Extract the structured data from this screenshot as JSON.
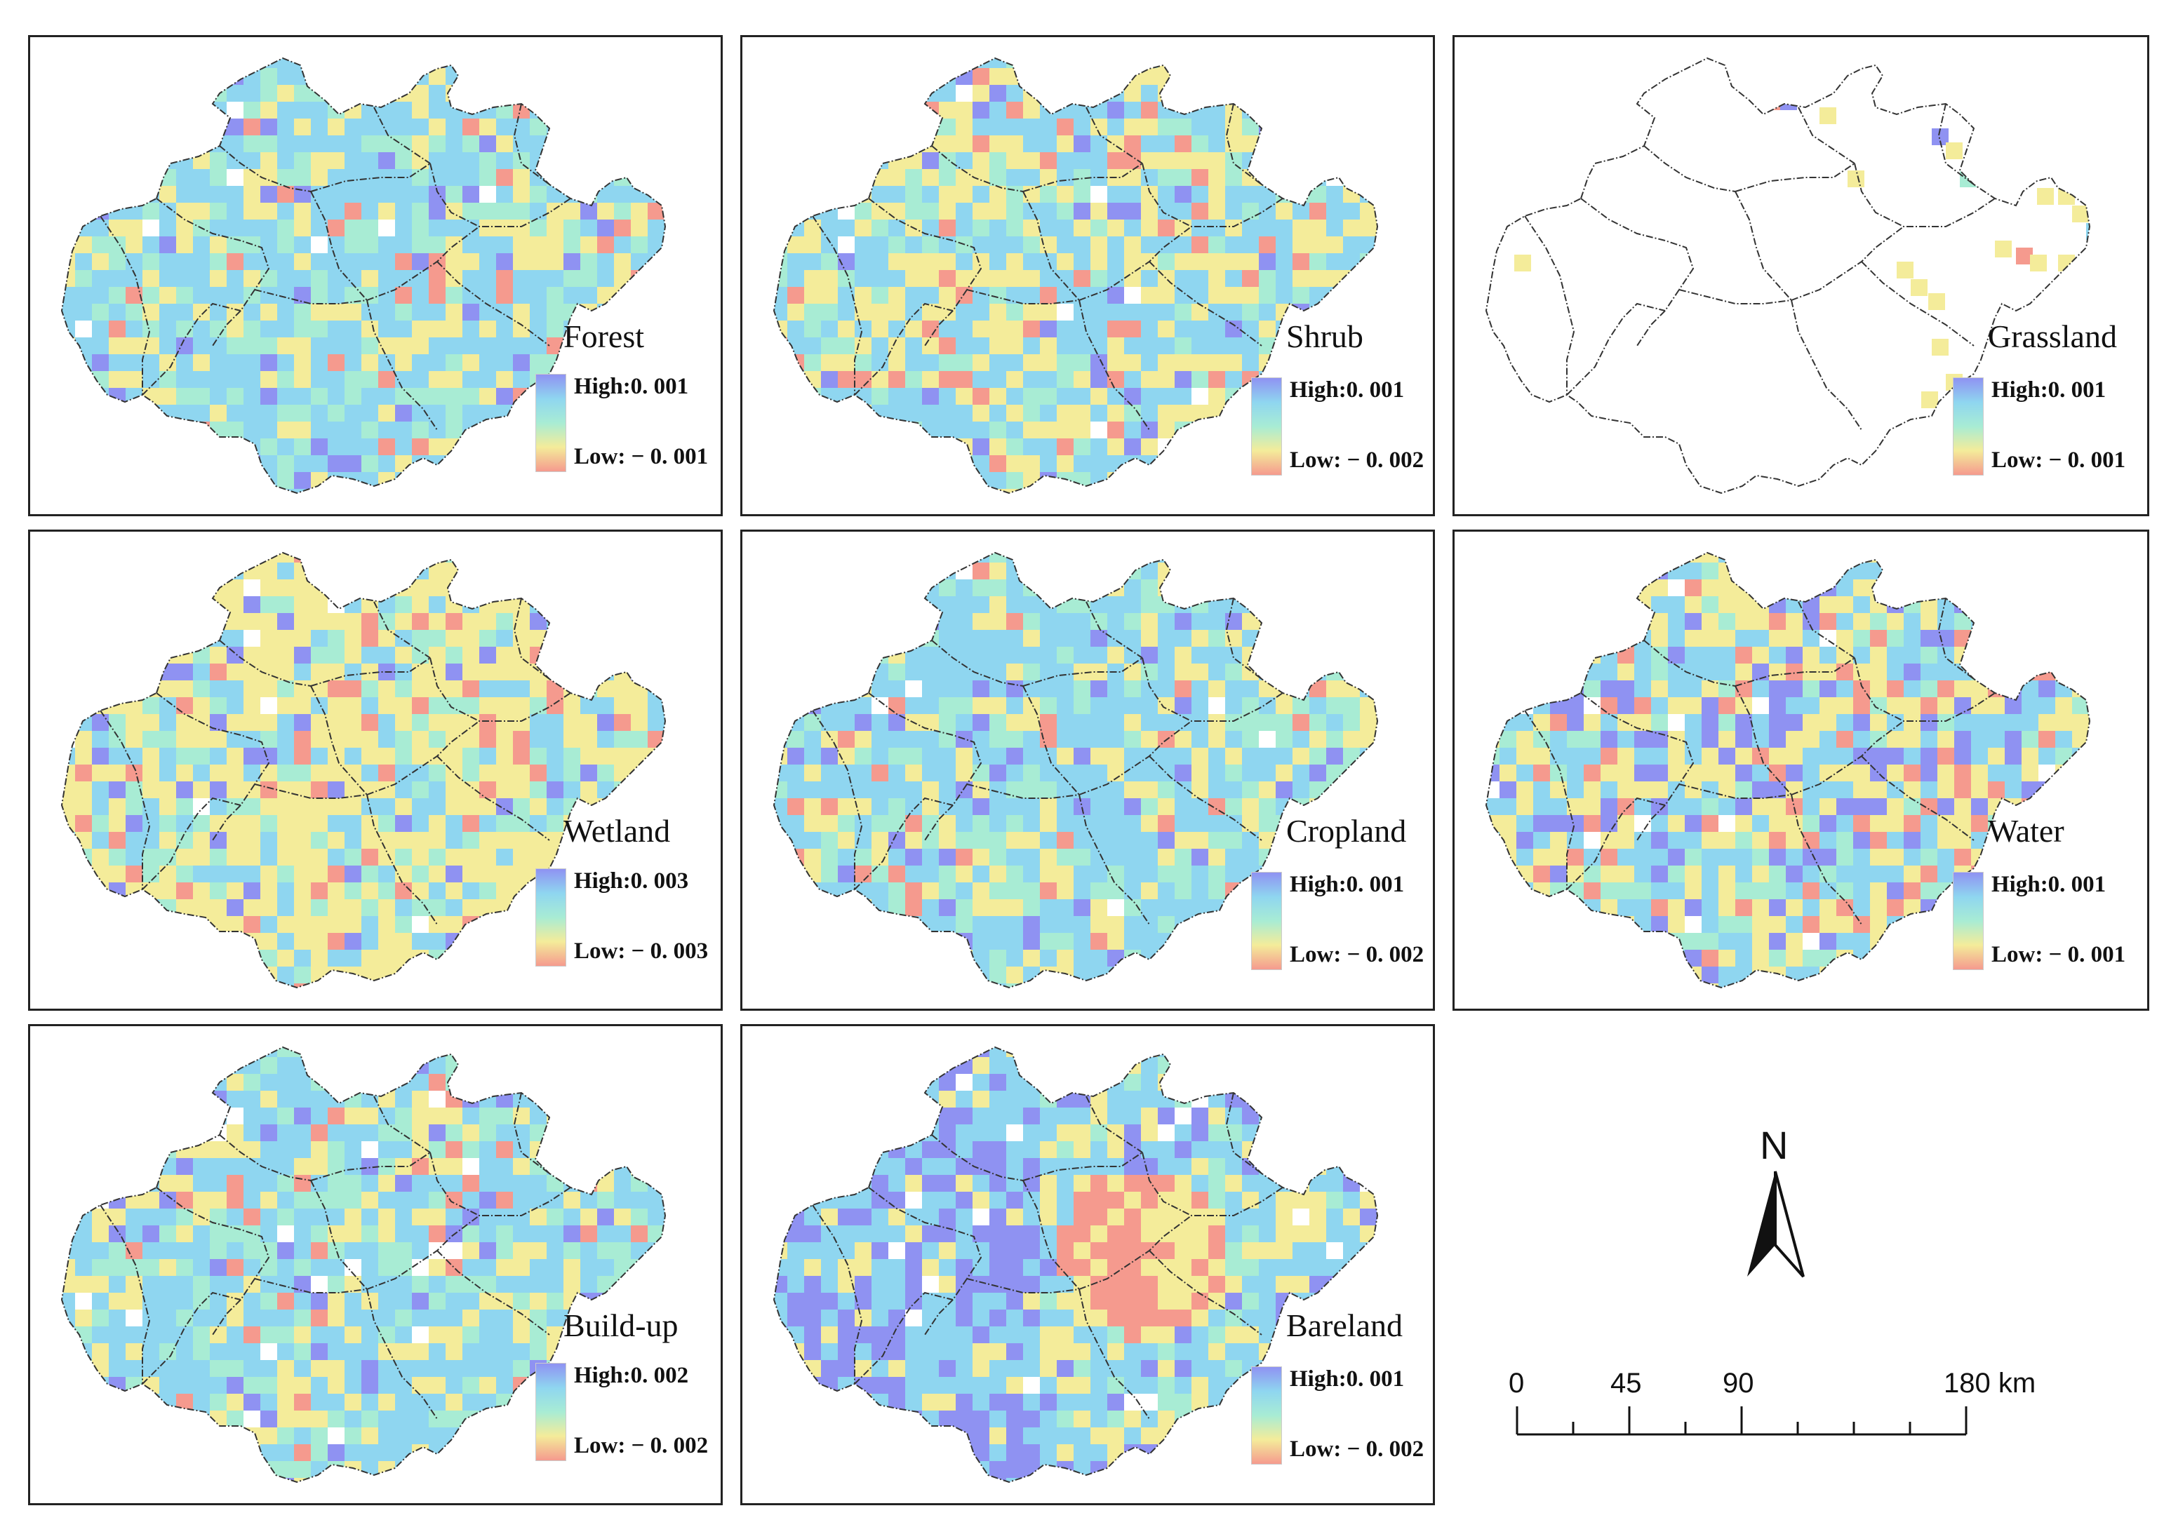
{
  "colors": {
    "high": "#8f92f2",
    "mid_high": "#8fd6f0",
    "mid": "#a8ecd4",
    "mid_low": "#f4ec9a",
    "low": "#f59a8e",
    "boundary": "#333333",
    "panel_border": "#222222"
  },
  "panels": [
    {
      "id": "forest",
      "title": "Forest",
      "high_label": "High:0. 001",
      "low_label": "Low: − 0. 001",
      "pattern": "mixed-cyan"
    },
    {
      "id": "shrub",
      "title": "Shrub",
      "high_label": "High:0. 001",
      "low_label": "Low: − 0. 002",
      "pattern": "mixed-cyan-yellow"
    },
    {
      "id": "grassland",
      "title": "Grassland",
      "high_label": "High:0. 001",
      "low_label": "Low: − 0. 001",
      "pattern": "sparse"
    },
    {
      "id": "wetland",
      "title": "Wetland",
      "high_label": "High:0. 003",
      "low_label": "Low: − 0. 003",
      "pattern": "mixed-yellow"
    },
    {
      "id": "cropland",
      "title": "Cropland",
      "high_label": "High:0. 001",
      "low_label": "Low: − 0. 002",
      "pattern": "mixed-cyan"
    },
    {
      "id": "water",
      "title": "Water",
      "high_label": "High:0. 001",
      "low_label": "Low: − 0. 001",
      "pattern": "mixed-blue-yellow"
    },
    {
      "id": "buildup",
      "title": "Build-up",
      "high_label": "High:0. 002",
      "low_label": "Low: − 0. 002",
      "pattern": "mixed-cyan"
    },
    {
      "id": "bareland",
      "title": "Bareland",
      "high_label": "High:0. 001",
      "low_label": "Low: − 0. 002",
      "pattern": "blue-west-red-east"
    }
  ],
  "north_arrow": {
    "letter": "N",
    "icon": "north-arrow-icon"
  },
  "scale_bar": {
    "ticks": [
      "0",
      "45",
      "90",
      "180 km"
    ]
  }
}
